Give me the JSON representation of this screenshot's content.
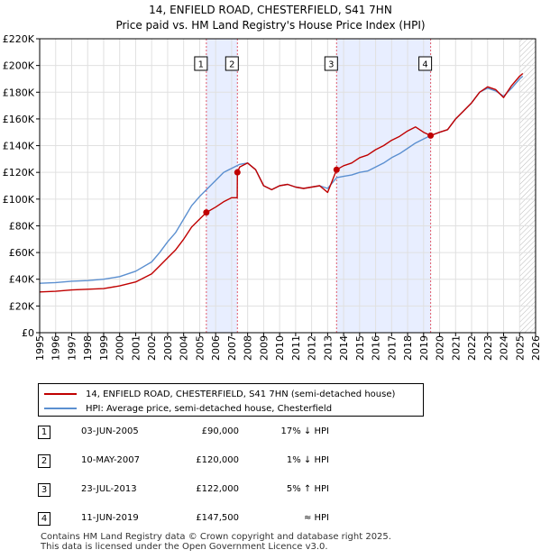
{
  "title": {
    "line1": "14, ENFIELD ROAD, CHESTERFIELD, S41 7HN",
    "line2": "Price paid vs. HM Land Registry's House Price Index (HPI)"
  },
  "legend": {
    "property_label": "14, ENFIELD ROAD, CHESTERFIELD, S41 7HN (semi-detached house)",
    "hpi_label": "HPI: Average price, semi-detached house, Chesterfield"
  },
  "colors": {
    "property": "#c00000",
    "hpi": "#5b8fd0",
    "shade": "#e8eeff",
    "marker_line": "#e05a6a"
  },
  "transactions": [
    {
      "num": "1",
      "date": "03-JUN-2005",
      "price": "£90,000",
      "hpi": "17% ↓ HPI"
    },
    {
      "num": "2",
      "date": "10-MAY-2007",
      "price": "£120,000",
      "hpi": "1% ↓ HPI"
    },
    {
      "num": "3",
      "date": "23-JUL-2013",
      "price": "£122,000",
      "hpi": "5% ↑ HPI"
    },
    {
      "num": "4",
      "date": "11-JUN-2019",
      "price": "£147,500",
      "hpi": "≈ HPI"
    }
  ],
  "footer": {
    "line1": "Contains HM Land Registry data © Crown copyright and database right 2025.",
    "line2": "This data is licensed under the Open Government Licence v3.0."
  },
  "chart_data": {
    "type": "line",
    "ylim": [
      0,
      220000
    ],
    "xlim": [
      1995,
      2026
    ],
    "y_ticks": [
      0,
      20000,
      40000,
      60000,
      80000,
      100000,
      120000,
      140000,
      160000,
      180000,
      200000,
      220000
    ],
    "y_tick_labels": [
      "£0",
      "£20K",
      "£40K",
      "£60K",
      "£80K",
      "£100K",
      "£120K",
      "£140K",
      "£160K",
      "£180K",
      "£200K",
      "£220K"
    ],
    "x_ticks": [
      1995,
      1996,
      1997,
      1998,
      1999,
      2000,
      2001,
      2002,
      2003,
      2004,
      2005,
      2006,
      2007,
      2008,
      2009,
      2010,
      2011,
      2012,
      2013,
      2014,
      2015,
      2016,
      2017,
      2018,
      2019,
      2020,
      2021,
      2022,
      2023,
      2024,
      2025,
      2026
    ],
    "x_tick_labels": [
      "1995",
      "1996",
      "1997",
      "1998",
      "1999",
      "2000",
      "2001",
      "2002",
      "2003",
      "2004",
      "2005",
      "2006",
      "2007",
      "2008",
      "2009",
      "2010",
      "2011",
      "2012",
      "2013",
      "2014",
      "2015",
      "2016",
      "2017",
      "2018",
      "2019",
      "2020",
      "2021",
      "2022",
      "2023",
      "2024",
      "2025",
      "2026"
    ],
    "shaded_ranges": [
      [
        2005.42,
        2007.36
      ],
      [
        2013.56,
        2019.44
      ]
    ],
    "hatched_from": 2025.0,
    "sale_markers": [
      {
        "label": "1",
        "x": 2005.42,
        "y": 90000
      },
      {
        "label": "2",
        "x": 2007.36,
        "y": 120000
      },
      {
        "label": "3",
        "x": 2013.56,
        "y": 122000
      },
      {
        "label": "4",
        "x": 2019.44,
        "y": 147500
      }
    ],
    "series": [
      {
        "name": "HPI: Average price, semi-detached house, Chesterfield",
        "points": [
          [
            1995.0,
            37000
          ],
          [
            1996.0,
            37500
          ],
          [
            1997.0,
            38500
          ],
          [
            1998.0,
            39000
          ],
          [
            1999.0,
            40000
          ],
          [
            2000.0,
            42000
          ],
          [
            2001.0,
            46000
          ],
          [
            2002.0,
            53000
          ],
          [
            2002.5,
            60000
          ],
          [
            2003.0,
            68000
          ],
          [
            2003.5,
            75000
          ],
          [
            2004.0,
            85000
          ],
          [
            2004.5,
            95000
          ],
          [
            2005.0,
            102000
          ],
          [
            2005.5,
            108000
          ],
          [
            2006.0,
            114000
          ],
          [
            2006.5,
            120000
          ],
          [
            2007.0,
            123000
          ],
          [
            2007.5,
            126000
          ],
          [
            2008.0,
            127000
          ],
          [
            2008.5,
            122000
          ],
          [
            2009.0,
            110000
          ],
          [
            2009.5,
            107000
          ],
          [
            2010.0,
            110000
          ],
          [
            2010.5,
            111000
          ],
          [
            2011.0,
            109000
          ],
          [
            2011.5,
            108000
          ],
          [
            2012.0,
            109000
          ],
          [
            2012.5,
            110000
          ],
          [
            2013.0,
            108000
          ],
          [
            2013.56,
            116000
          ],
          [
            2014.0,
            117000
          ],
          [
            2014.5,
            118000
          ],
          [
            2015.0,
            120000
          ],
          [
            2015.5,
            121000
          ],
          [
            2016.0,
            124000
          ],
          [
            2016.5,
            127000
          ],
          [
            2017.0,
            131000
          ],
          [
            2017.5,
            134000
          ],
          [
            2018.0,
            138000
          ],
          [
            2018.5,
            142000
          ],
          [
            2019.0,
            145000
          ],
          [
            2019.44,
            147500
          ],
          [
            2020.0,
            150000
          ],
          [
            2020.5,
            152000
          ],
          [
            2021.0,
            160000
          ],
          [
            2021.5,
            166000
          ],
          [
            2022.0,
            172000
          ],
          [
            2022.5,
            180000
          ],
          [
            2023.0,
            183000
          ],
          [
            2023.5,
            181000
          ],
          [
            2024.0,
            177000
          ],
          [
            2024.5,
            183000
          ],
          [
            2025.0,
            190000
          ],
          [
            2025.2,
            192000
          ]
        ]
      },
      {
        "name": "14, ENFIELD ROAD, CHESTERFIELD, S41 7HN (semi-detached house)",
        "points": [
          [
            1995.0,
            30500
          ],
          [
            1996.0,
            31000
          ],
          [
            1997.0,
            32000
          ],
          [
            1998.0,
            32500
          ],
          [
            1999.0,
            33000
          ],
          [
            2000.0,
            35000
          ],
          [
            2001.0,
            38000
          ],
          [
            2002.0,
            44000
          ],
          [
            2002.5,
            50000
          ],
          [
            2003.0,
            56000
          ],
          [
            2003.5,
            62000
          ],
          [
            2004.0,
            70000
          ],
          [
            2004.5,
            79000
          ],
          [
            2005.0,
            85000
          ],
          [
            2005.42,
            90000
          ],
          [
            2006.0,
            94000
          ],
          [
            2006.5,
            98000
          ],
          [
            2007.0,
            101000
          ],
          [
            2007.35,
            101000
          ],
          [
            2007.36,
            120000
          ],
          [
            2007.5,
            124000
          ],
          [
            2008.0,
            127000
          ],
          [
            2008.5,
            122000
          ],
          [
            2009.0,
            110000
          ],
          [
            2009.5,
            107000
          ],
          [
            2010.0,
            110000
          ],
          [
            2010.5,
            111000
          ],
          [
            2011.0,
            109000
          ],
          [
            2011.5,
            108000
          ],
          [
            2012.0,
            109000
          ],
          [
            2012.5,
            110000
          ],
          [
            2013.0,
            105000
          ],
          [
            2013.56,
            122000
          ],
          [
            2014.0,
            125000
          ],
          [
            2014.5,
            127000
          ],
          [
            2015.0,
            131000
          ],
          [
            2015.5,
            133000
          ],
          [
            2016.0,
            137000
          ],
          [
            2016.5,
            140000
          ],
          [
            2017.0,
            144000
          ],
          [
            2017.5,
            147000
          ],
          [
            2018.0,
            151000
          ],
          [
            2018.5,
            154000
          ],
          [
            2019.0,
            150000
          ],
          [
            2019.44,
            147500
          ],
          [
            2020.0,
            150000
          ],
          [
            2020.5,
            152000
          ],
          [
            2021.0,
            160000
          ],
          [
            2021.5,
            166000
          ],
          [
            2022.0,
            172000
          ],
          [
            2022.5,
            180000
          ],
          [
            2023.0,
            184000
          ],
          [
            2023.5,
            182000
          ],
          [
            2024.0,
            176000
          ],
          [
            2024.5,
            185000
          ],
          [
            2025.0,
            192000
          ],
          [
            2025.2,
            194000
          ]
        ]
      }
    ]
  }
}
